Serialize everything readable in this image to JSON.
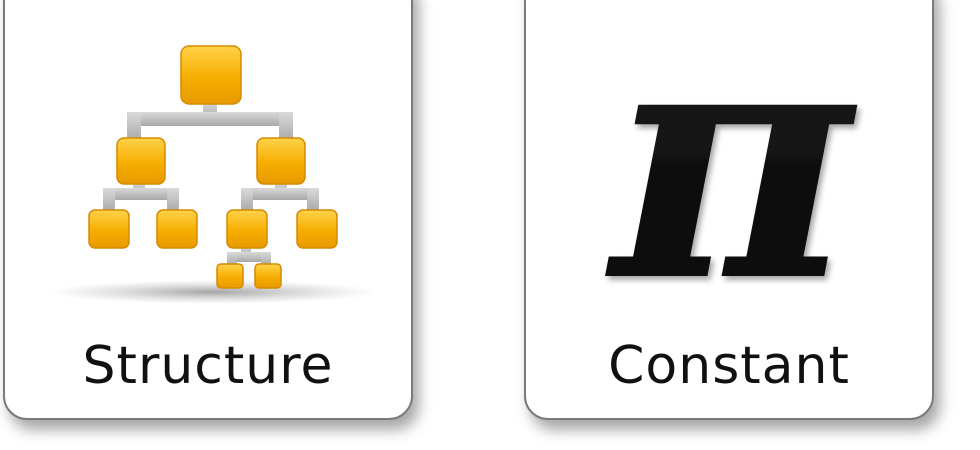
{
  "tiles": [
    {
      "id": "structure",
      "label": "Structure",
      "icon": "org-chart-icon",
      "accent": "#f5b400",
      "connector": "#bdbdbd"
    },
    {
      "id": "constant",
      "label": "Constant",
      "icon": "pi-icon",
      "glyph": "π",
      "accent": "#0a0a0a"
    }
  ]
}
